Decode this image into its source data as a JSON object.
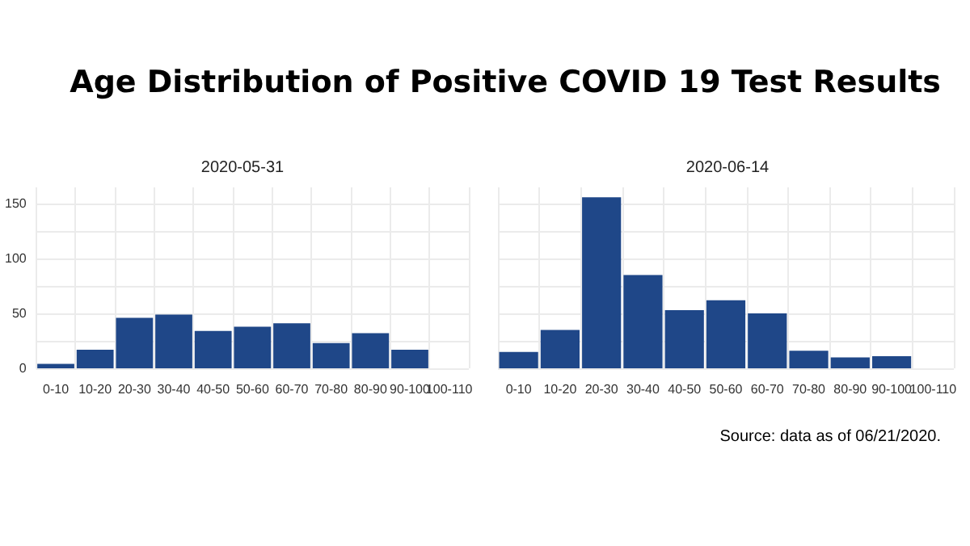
{
  "chart_data": [
    {
      "type": "bar",
      "title": "Age Distribution of Positive COVID 19 Test Results",
      "subtitle": "2020-05-31",
      "categories": [
        "0-10",
        "10-20",
        "20-30",
        "30-40",
        "40-50",
        "50-60",
        "60-70",
        "70-80",
        "80-90",
        "90-100",
        "100-110"
      ],
      "values": [
        4,
        17,
        46,
        49,
        34,
        38,
        41,
        23,
        32,
        17,
        0
      ],
      "color": "#1f4788",
      "ylim": [
        0,
        165
      ],
      "yticks": [
        0,
        {
          "value": 25,
          "label": null
        },
        50,
        {
          "value": 75,
          "label": null
        },
        100,
        {
          "value": 125,
          "label": null
        },
        150
      ],
      "grid": true
    },
    {
      "type": "bar",
      "subtitle": "2020-06-14",
      "categories": [
        "0-10",
        "10-20",
        "20-30",
        "30-40",
        "40-50",
        "50-60",
        "60-70",
        "70-80",
        "80-90",
        "90-100",
        "100-110"
      ],
      "values": [
        15,
        35,
        156,
        85,
        53,
        62,
        50,
        16,
        10,
        11,
        0
      ],
      "color": "#1f4788",
      "ylim": [
        0,
        165
      ],
      "yticks": [
        0,
        {
          "value": 25,
          "label": null
        },
        50,
        {
          "value": 75,
          "label": null
        },
        100,
        {
          "value": 125,
          "label": null
        },
        150
      ],
      "grid": true,
      "tick_labels": "x",
      "annotations": [
        "Source: data as of 06/21/2020."
      ]
    }
  ]
}
